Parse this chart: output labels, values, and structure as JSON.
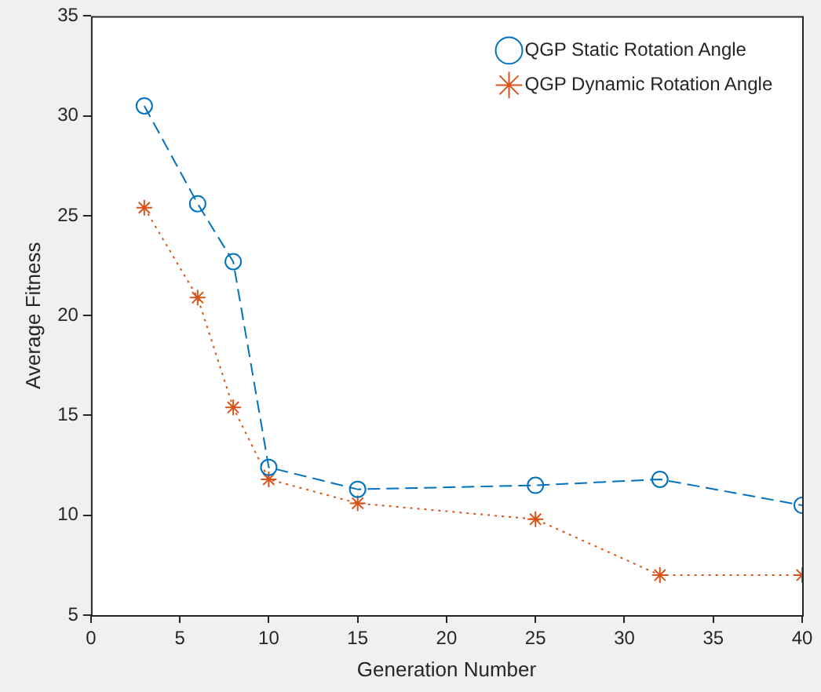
{
  "chart_data": {
    "type": "line",
    "xlabel": "Generation Number",
    "ylabel": "Average Fitness",
    "x": [
      3,
      6,
      8,
      10,
      15,
      25,
      32,
      40
    ],
    "series": [
      {
        "name": "QGP Static Rotation Angle",
        "color": "#0072bd",
        "marker": "circle",
        "line_style": "dashed",
        "values": [
          30.5,
          25.6,
          22.7,
          12.4,
          11.3,
          11.5,
          11.8,
          10.5
        ]
      },
      {
        "name": "QGP Dynamic Rotation Angle",
        "color": "#d95319",
        "marker": "cross",
        "line_style": "dotted",
        "values": [
          25.4,
          20.9,
          15.4,
          11.8,
          10.6,
          9.8,
          7.0,
          7.0
        ]
      }
    ],
    "xlim": [
      0,
      40
    ],
    "xticks": [
      0,
      5,
      10,
      15,
      20,
      25,
      30,
      35,
      40
    ],
    "ylim": [
      5,
      35
    ],
    "yticks": [
      5,
      10,
      15,
      20,
      25,
      30,
      35
    ],
    "grid": false,
    "legend": "top right"
  }
}
